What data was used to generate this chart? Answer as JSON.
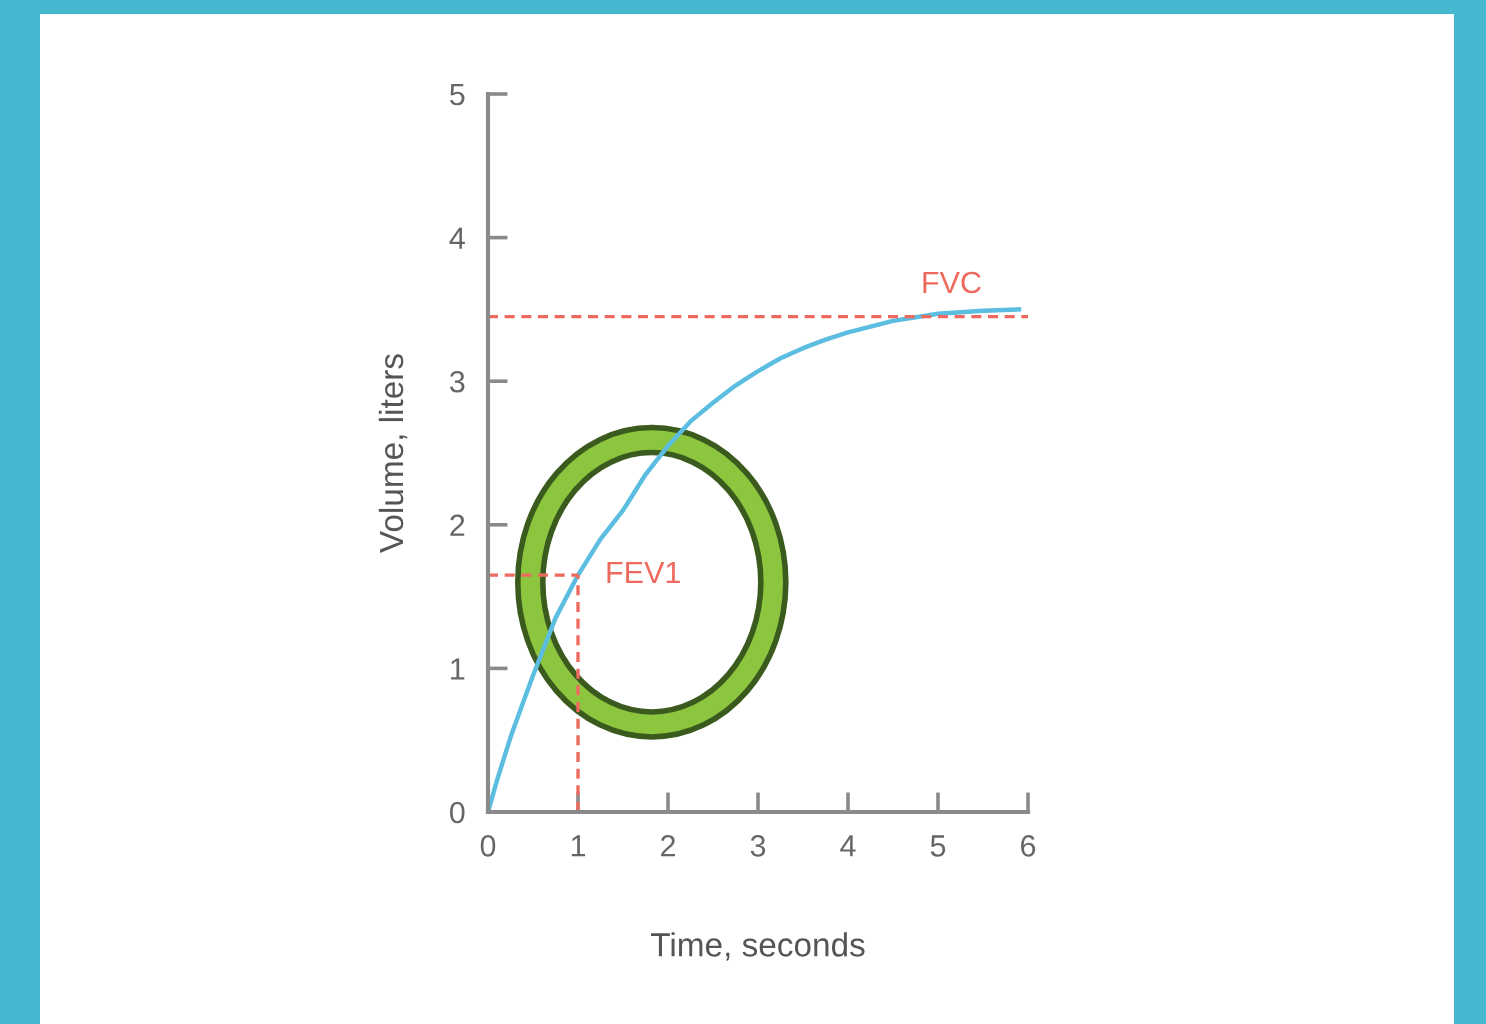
{
  "chart_data": {
    "type": "line",
    "xlabel": "Time, seconds",
    "ylabel": "Volume, liters",
    "series": [
      {
        "color": "#5bbde0",
        "x": [
          0,
          0.1,
          0.25,
          0.4,
          0.5,
          0.75,
          1,
          1.25,
          1.5,
          1.75,
          2,
          2.25,
          2.5,
          2.75,
          3,
          3.25,
          3.5,
          3.75,
          4,
          4.5,
          5,
          5.5,
          5.9
        ],
        "values": [
          0,
          0.22,
          0.52,
          0.78,
          0.95,
          1.35,
          1.65,
          1.9,
          2.1,
          2.35,
          2.55,
          2.72,
          2.85,
          2.97,
          3.07,
          3.16,
          3.23,
          3.29,
          3.34,
          3.42,
          3.47,
          3.49,
          3.5
        ]
      }
    ],
    "annotations": [
      {
        "text": "FEV1",
        "x": 1,
        "y": 1.65
      }
    ],
    "ref_lines": [
      {
        "axis": "y",
        "value": 3.45,
        "label": "FVC",
        "color": "#ee6a5e",
        "line_style": "dashed"
      }
    ],
    "xlim": [
      0,
      6
    ],
    "ylim": [
      0,
      5
    ],
    "xticks": [
      0,
      1,
      2,
      3,
      4,
      5,
      6
    ],
    "yticks": [
      0,
      1,
      2,
      3,
      4,
      5
    ],
    "grid": false,
    "legend": false,
    "marker": "none",
    "line_style": "solid"
  }
}
